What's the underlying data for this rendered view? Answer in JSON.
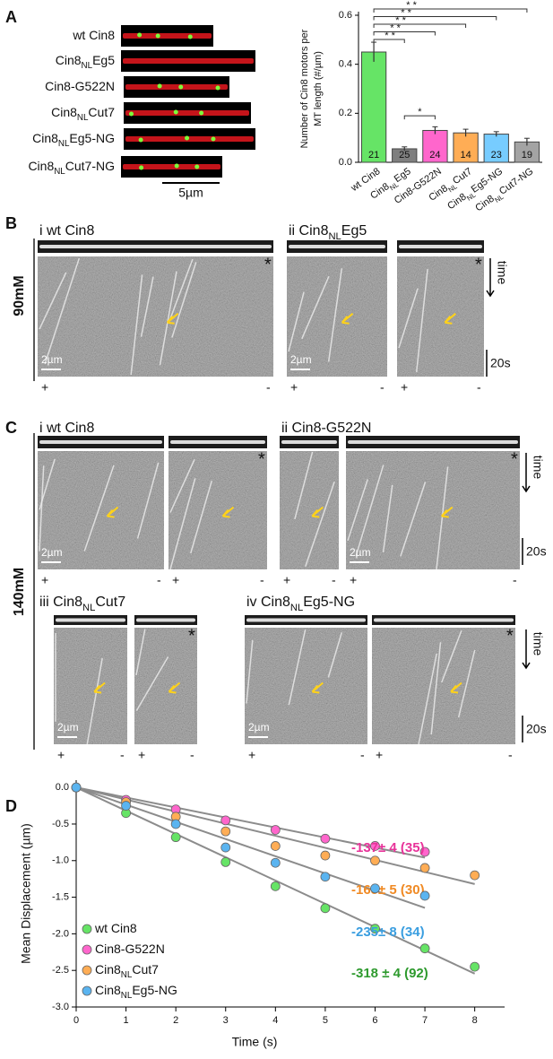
{
  "panel_a": {
    "label": "A",
    "rows": [
      [
        "wt Cin8"
      ],
      [
        "Cin8",
        "NL",
        "Eg5"
      ],
      [
        "Cin8-G522N"
      ],
      [
        "Cin8",
        "NL",
        "Cut7"
      ],
      [
        "Cin8",
        "NL",
        "Eg5-NG"
      ],
      [
        "Cin8",
        "NL",
        "Cut7-NG"
      ]
    ],
    "scale": "5µm"
  },
  "panel_b": {
    "label": "B",
    "condition": "90mM",
    "titles": [
      [
        "i wt Cin8"
      ],
      [
        "ii Cin8",
        "NL",
        "Eg5"
      ]
    ]
  },
  "panel_c": {
    "label": "C",
    "condition": "140mM",
    "titles": [
      [
        "i wt Cin8"
      ],
      [
        "ii Cin8-G522N"
      ],
      [
        "iii Cin8",
        "NL",
        "Cut7"
      ],
      [
        "iv Cin8",
        "NL",
        "Eg5-NG"
      ]
    ]
  },
  "panel_d": {
    "label": "D"
  },
  "markers": {
    "plus": "+",
    "minus": "-",
    "end": "*",
    "time": "time",
    "time_scale": "20s",
    "length_scale": "2µm"
  },
  "chart_data": [
    {
      "type": "bar",
      "ylabel": [
        "Number of Cin8 motors per",
        "MT length (#/µm)"
      ],
      "categories": [
        [
          "wt Cin8"
        ],
        [
          "Cin8",
          "NL",
          "Eg5"
        ],
        [
          "Cin8-G522N"
        ],
        [
          "Cin8",
          "NL",
          "Cut7"
        ],
        [
          "Cin8",
          "NL",
          "Eg5-NG"
        ],
        [
          "Cin8",
          "NL",
          "Cut7-NG"
        ]
      ],
      "values": [
        0.45,
        0.055,
        0.13,
        0.12,
        0.115,
        0.083
      ],
      "errors": [
        0.04,
        0.008,
        0.015,
        0.015,
        0.01,
        0.015
      ],
      "n": [
        21,
        25,
        24,
        14,
        23,
        19
      ],
      "colors": [
        "#66e466",
        "#7f7f7f",
        "#ff66cc",
        "#ffad55",
        "#77ccff",
        "#a3a3a3"
      ],
      "significance": [
        "* *",
        "* *",
        "* *",
        "* *",
        "* *",
        "*"
      ],
      "ylim": [
        0,
        0.6
      ],
      "yticks": [
        {
          "value": 0,
          "label": "0.0"
        },
        0.2,
        0.4,
        0.6
      ]
    },
    {
      "type": "scatter",
      "xlabel": "Time (s)",
      "ylabel": "Mean Displacement (µm)",
      "xlim": [
        0,
        8.6
      ],
      "ylim": [
        -3.0,
        0.1
      ],
      "xticks": [
        0,
        1,
        2,
        3,
        4,
        5,
        6,
        7,
        8
      ],
      "yticks": [
        {
          "value": -3.0,
          "label": "-3.0"
        },
        -2.5,
        {
          "value": -2.0,
          "label": "-2.0"
        },
        -1.5,
        {
          "value": -1.0,
          "label": "-1.0"
        },
        -0.5,
        {
          "value": 0,
          "label": "0.0"
        }
      ],
      "fit_color": "#8c8c8c",
      "series": [
        {
          "name": [
            "wt Cin8"
          ],
          "color": "#66e466",
          "x": [
            0,
            1,
            2,
            3,
            4,
            5,
            6,
            7,
            8
          ],
          "values": [
            0,
            -0.35,
            -0.68,
            -1.02,
            -1.35,
            -1.65,
            -1.93,
            -2.2,
            -2.45
          ],
          "fit_slope": -0.318,
          "annotation": "-318 ± 4 (92)",
          "annotation_color": "#2e9a2e"
        },
        {
          "name": [
            "Cin8-G522N"
          ],
          "color": "#ff66cc",
          "x": [
            0,
            1,
            2,
            3,
            4,
            5,
            6,
            7
          ],
          "values": [
            0,
            -0.17,
            -0.3,
            -0.45,
            -0.58,
            -0.7,
            -0.8,
            -0.88
          ],
          "fit_slope": -0.137,
          "annotation": "-137± 4 (35)",
          "annotation_color": "#e8339a"
        },
        {
          "name": [
            "Cin8",
            "NL",
            "Cut7"
          ],
          "color": "#ffad55",
          "x": [
            0,
            1,
            2,
            3,
            4,
            5,
            6,
            7,
            8
          ],
          "values": [
            0,
            -0.2,
            -0.4,
            -0.6,
            -0.8,
            -0.93,
            -1.0,
            -1.1,
            -1.2
          ],
          "fit_slope": -0.165,
          "annotation": "-165± 5 (30)",
          "annotation_color": "#f08a24"
        },
        {
          "name": [
            "Cin8",
            "NL",
            "Eg5-NG"
          ],
          "color": "#5ab4f0",
          "x": [
            0,
            1,
            2,
            3,
            4,
            5,
            6,
            7
          ],
          "values": [
            0,
            -0.25,
            -0.5,
            -0.82,
            -1.03,
            -1.22,
            -1.38,
            -1.48
          ],
          "fit_slope": -0.235,
          "annotation": "-235± 8 (34)",
          "annotation_color": "#3a9ee0"
        }
      ]
    }
  ]
}
